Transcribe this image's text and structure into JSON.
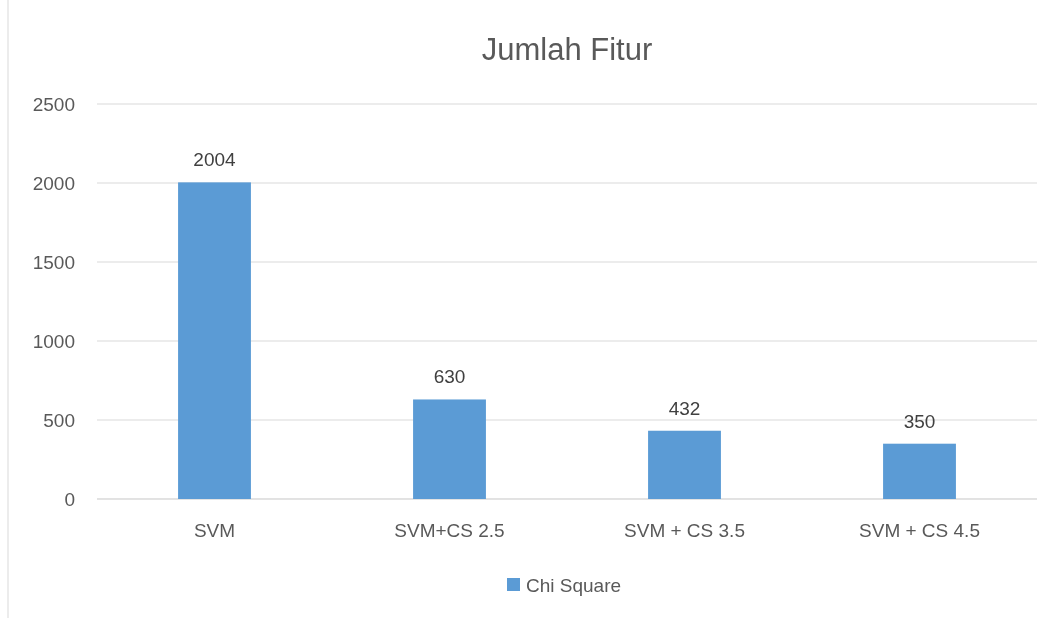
{
  "chart_data": {
    "type": "bar",
    "title": "Jumlah Fitur",
    "categories": [
      "SVM",
      "SVM+CS 2.5",
      "SVM + CS 3.5",
      "SVM + CS 4.5"
    ],
    "series": [
      {
        "name": "Chi Square",
        "color": "#5b9bd5",
        "values": [
          2004,
          630,
          432,
          350
        ]
      }
    ],
    "ylim": [
      0,
      2500
    ],
    "yticks": [
      0,
      500,
      1000,
      1500,
      2000,
      2500
    ],
    "grid": "y",
    "legend": "bottom",
    "data_labels": true
  }
}
